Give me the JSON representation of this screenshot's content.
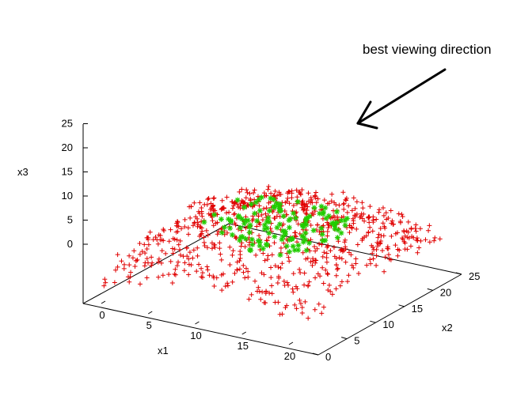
{
  "chart_data": {
    "type": "scatter",
    "dimensions": 3,
    "title": "",
    "annotation": "best viewing direction",
    "axes": {
      "x1": {
        "label": "x1",
        "range": [
          0,
          22
        ],
        "ticks": [
          0,
          5,
          10,
          15,
          20
        ]
      },
      "x2": {
        "label": "x2",
        "range": [
          0,
          25
        ],
        "ticks": [
          0,
          5,
          10,
          15,
          20,
          25
        ]
      },
      "x3": {
        "label": "x3",
        "range": [
          -5,
          25
        ],
        "ticks": [
          0,
          5,
          10,
          15,
          20,
          25
        ]
      }
    },
    "series": [
      {
        "marker": "+",
        "color": "#e00000",
        "point_count": 800
      },
      {
        "marker": "*",
        "color": "#22cc00",
        "point_count": 130
      }
    ]
  }
}
